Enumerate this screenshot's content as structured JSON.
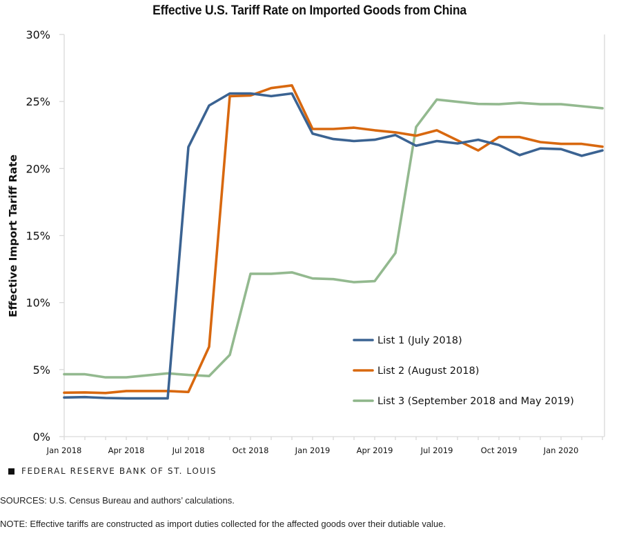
{
  "chart_data": {
    "type": "line",
    "title": "Effective U.S. Tariff Rate on Imported Goods from China",
    "xlabel": "",
    "ylabel": "Effective Import Tariff Rate",
    "ylim": [
      0,
      30
    ],
    "yticks": [
      0,
      5,
      10,
      15,
      20,
      25,
      30
    ],
    "ytick_labels": [
      "0%",
      "5%",
      "10%",
      "15%",
      "20%",
      "25%",
      "30%"
    ],
    "x": [
      "Jan 2018",
      "Feb 2018",
      "Mar 2018",
      "Apr 2018",
      "May 2018",
      "Jun 2018",
      "Jul 2018",
      "Aug 2018",
      "Sep 2018",
      "Oct 2018",
      "Nov 2018",
      "Dec 2018",
      "Jan 2019",
      "Feb 2019",
      "Mar 2019",
      "Apr 2019",
      "May 2019",
      "Jun 2019",
      "Jul 2019",
      "Aug 2019",
      "Sep 2019",
      "Oct 2019",
      "Nov 2019",
      "Dec 2019",
      "Jan 2020",
      "Feb 2020",
      "Mar 2020"
    ],
    "xtick_labels": [
      {
        "index": 0,
        "label": "Jan 2018"
      },
      {
        "index": 3,
        "label": "Apr 2018"
      },
      {
        "index": 6,
        "label": "Jul 2018"
      },
      {
        "index": 9,
        "label": "Oct 2018"
      },
      {
        "index": 12,
        "label": "Jan 2019"
      },
      {
        "index": 15,
        "label": "Apr 2019"
      },
      {
        "index": 18,
        "label": "Jul 2019"
      },
      {
        "index": 21,
        "label": "Oct 2019"
      },
      {
        "index": 24,
        "label": "Jan 2020"
      }
    ],
    "series": [
      {
        "name": "List 1 (July 2018)",
        "color": "#3b6392",
        "values": [
          2.92,
          2.95,
          2.88,
          2.85,
          2.85,
          2.85,
          21.6,
          24.7,
          25.6,
          25.6,
          25.4,
          25.6,
          22.6,
          22.2,
          22.05,
          22.15,
          22.5,
          21.7,
          22.05,
          21.87,
          22.15,
          21.75,
          21.0,
          21.5,
          21.45,
          20.95,
          21.35
        ]
      },
      {
        "name": "List 2 (August 2018)",
        "color": "#d8680f",
        "values": [
          3.28,
          3.3,
          3.25,
          3.4,
          3.4,
          3.4,
          3.33,
          6.7,
          25.4,
          25.45,
          26.0,
          26.2,
          22.95,
          22.95,
          23.05,
          22.85,
          22.7,
          22.45,
          22.85,
          22.1,
          21.35,
          22.35,
          22.35,
          21.97,
          21.84,
          21.84,
          21.63
        ]
      },
      {
        "name": "List 3 (September 2018 and May 2019)",
        "color": "#8db589",
        "values": [
          4.65,
          4.65,
          4.42,
          4.42,
          4.57,
          4.72,
          4.6,
          4.52,
          6.1,
          12.15,
          12.15,
          12.25,
          11.8,
          11.75,
          11.52,
          11.6,
          13.7,
          23.1,
          25.15,
          24.98,
          24.82,
          24.8,
          24.9,
          24.8,
          24.8,
          24.65,
          24.5
        ]
      }
    ],
    "grid": false,
    "legend_position": "bottom-right-inside"
  },
  "footer": {
    "brand": "FEDERAL RESERVE BANK OF ST. LOUIS",
    "sources": "SOURCES: U.S. Census Bureau and authors’ calculations.",
    "note": "NOTE: Effective tariffs are constructed as import duties collected for the affected goods over their dutiable value."
  }
}
